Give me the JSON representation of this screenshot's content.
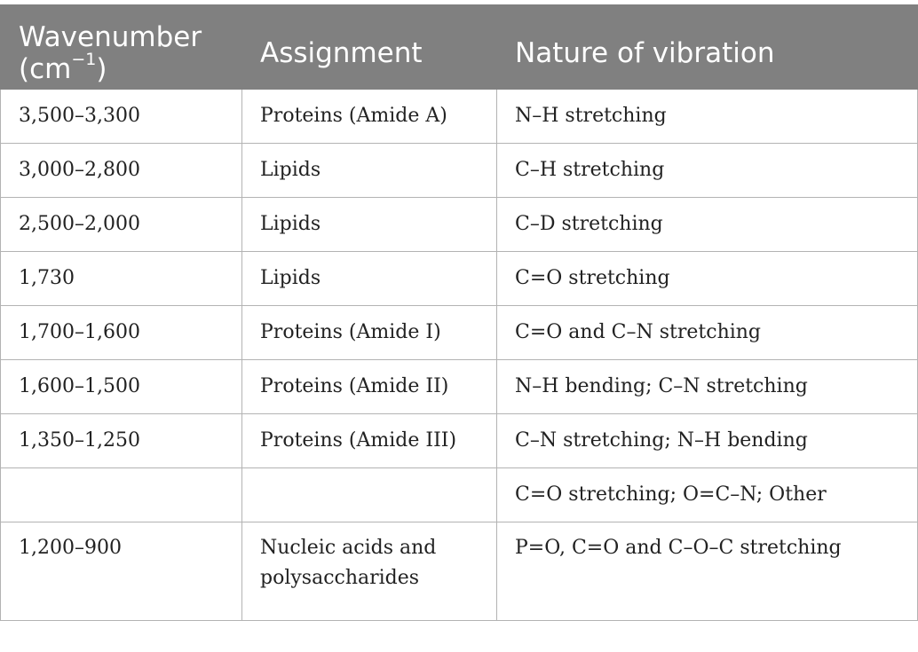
{
  "table": {
    "headers": {
      "wavenumber": "Wavenumber (cm",
      "wavenumber_sup": "−1",
      "wavenumber_close": ")",
      "assignment": "Assignment",
      "nature": "Nature of vibration"
    },
    "rows": [
      {
        "wavenumber": "3,500–3,300",
        "assignment": "Proteins (Amide A)",
        "nature": "N–H stretching"
      },
      {
        "wavenumber": "3,000–2,800",
        "assignment": "Lipids",
        "nature": "C–H stretching"
      },
      {
        "wavenumber": "2,500–2,000",
        "assignment": "Lipids",
        "nature": "C–D stretching"
      },
      {
        "wavenumber": "1,730",
        "assignment": "Lipids",
        "nature": "C=O stretching"
      },
      {
        "wavenumber": "1,700–1,600",
        "assignment": "Proteins (Amide I)",
        "nature": "C=O and C–N stretching"
      },
      {
        "wavenumber": "1,600–1,500",
        "assignment": "Proteins (Amide II)",
        "nature": "N–H bending; C–N stretching"
      },
      {
        "wavenumber": "1,350–1,250",
        "assignment": "Proteins (Amide III)",
        "nature": "C–N stretching; N–H bending"
      },
      {
        "wavenumber": "",
        "assignment": "",
        "nature": "C=O stretching; O=C–N; Other"
      },
      {
        "wavenumber": "1,200–900",
        "assignment": "Nucleic acids and polysaccharides",
        "nature": "P=O, C=O and C–O–C stretching"
      }
    ]
  }
}
